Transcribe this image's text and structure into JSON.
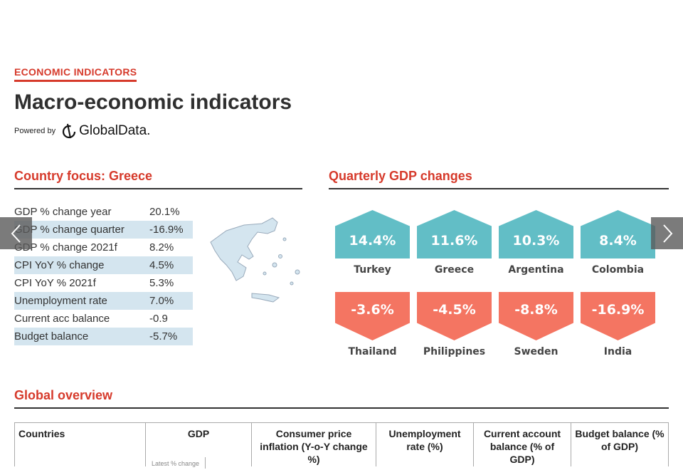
{
  "header": {
    "kicker": "ECONOMIC INDICATORS",
    "title": "Macro-economic indicators",
    "powered_by": "Powered by",
    "brand": "GlobalData."
  },
  "country_focus": {
    "heading": "Country focus: Greece",
    "rows": [
      {
        "label": "GDP % change year",
        "value": "20.1%"
      },
      {
        "label": "GDP % change quarter",
        "value": "-16.9%"
      },
      {
        "label": "GDP % change 2021f",
        "value": "8.2%"
      },
      {
        "label": "CPI YoY % change",
        "value": "4.5%"
      },
      {
        "label": "CPI YoY % 2021f",
        "value": "5.3%"
      },
      {
        "label": "Unemployment rate",
        "value": "7.0%"
      },
      {
        "label": "Current acc balance",
        "value": "-0.9"
      },
      {
        "label": "Budget balance",
        "value": "-5.7%"
      }
    ]
  },
  "quarterly": {
    "heading": "Quarterly GDP changes",
    "colors": {
      "positive": "#62bec6",
      "negative": "#f47562"
    },
    "top": [
      {
        "value": "14.4%",
        "country": "Turkey"
      },
      {
        "value": "11.6%",
        "country": "Greece"
      },
      {
        "value": "10.3%",
        "country": "Argentina"
      },
      {
        "value": "8.4%",
        "country": "Colombia"
      }
    ],
    "bottom": [
      {
        "value": "-3.6%",
        "country": "Thailand"
      },
      {
        "value": "-4.5%",
        "country": "Philippines"
      },
      {
        "value": "-8.8%",
        "country": "Sweden"
      },
      {
        "value": "-16.9%",
        "country": "India"
      }
    ]
  },
  "global": {
    "heading": "Global overview",
    "columns": [
      "Countries",
      "GDP",
      "Consumer price inflation (Y-o-Y change %)",
      "Unemployment rate (%)",
      "Current account balance (% of GDP)",
      "Budget balance (% of GDP)"
    ],
    "gdp_sub": "Latest % change"
  }
}
